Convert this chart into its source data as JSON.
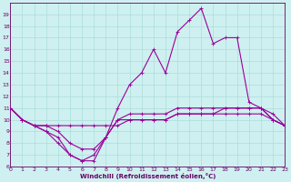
{
  "x_values": [
    0,
    1,
    2,
    3,
    4,
    5,
    6,
    7,
    8,
    9,
    10,
    11,
    12,
    13,
    14,
    15,
    16,
    17,
    18,
    19,
    20,
    21,
    22,
    23
  ],
  "line1": [
    11,
    10,
    9.5,
    9,
    8,
    7,
    6.5,
    7,
    8.5,
    10,
    10,
    10,
    10,
    10,
    10.5,
    10.5,
    10.5,
    10.5,
    10.5,
    10.5,
    10.5,
    10.5,
    10,
    9.5
  ],
  "line2": [
    11,
    10,
    9.5,
    9.5,
    9,
    8,
    7.5,
    7.5,
    8.5,
    10,
    10.5,
    10.5,
    10.5,
    10.5,
    11,
    11,
    11,
    11,
    11,
    11,
    11,
    11,
    10,
    9.5
  ],
  "line3": [
    11,
    10,
    9.5,
    9.5,
    9.5,
    9.5,
    9.5,
    9.5,
    9.5,
    9.5,
    10,
    10,
    10,
    10,
    10.5,
    10.5,
    10.5,
    10.5,
    11,
    11,
    11,
    11,
    10.5,
    9.5
  ],
  "line4": [
    11,
    10,
    9.5,
    9,
    8.5,
    7,
    6.5,
    6.5,
    8.5,
    11,
    13,
    14,
    16,
    14,
    17.5,
    18.5,
    19.5,
    16.5,
    17,
    17,
    11.5,
    11,
    10,
    9.5
  ],
  "line_color": "#990099",
  "bg_color": "#cff0f0",
  "grid_color": "#aadddd",
  "text_color": "#660066",
  "xlabel": "Windchill (Refroidissement éolien,°C)",
  "ylim": [
    6,
    20
  ],
  "xlim": [
    0,
    23
  ],
  "yticks": [
    6,
    7,
    8,
    9,
    10,
    11,
    12,
    13,
    14,
    15,
    16,
    17,
    18,
    19
  ],
  "xticks": [
    0,
    1,
    2,
    3,
    4,
    5,
    6,
    7,
    8,
    9,
    10,
    11,
    12,
    13,
    14,
    15,
    16,
    17,
    18,
    19,
    20,
    21,
    22,
    23
  ],
  "markersize": 2.0,
  "linewidth": 0.8
}
